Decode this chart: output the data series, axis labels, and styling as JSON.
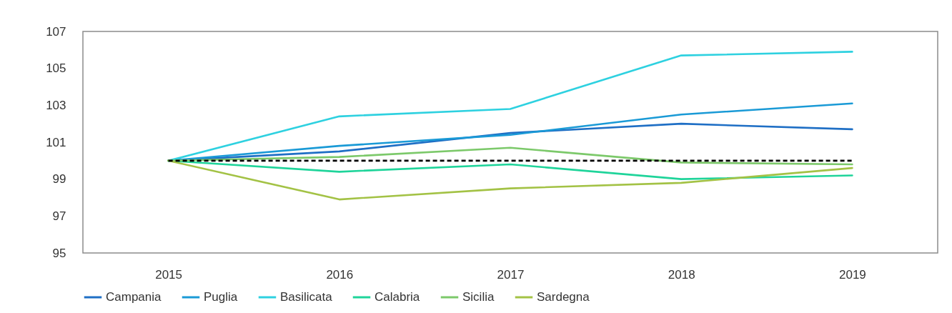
{
  "chart_data": {
    "type": "line",
    "categories": [
      "2015",
      "2016",
      "2017",
      "2018",
      "2019"
    ],
    "ylim": [
      95,
      107
    ],
    "yticks": [
      95,
      97,
      99,
      101,
      103,
      105,
      107
    ],
    "legend": "bottom",
    "series": [
      {
        "name": "Campania",
        "color": "#1f6fc5",
        "values": [
          100,
          100.5,
          101.5,
          102.0,
          101.7
        ]
      },
      {
        "name": "Puglia",
        "color": "#1a9ad6",
        "values": [
          100,
          100.8,
          101.4,
          102.5,
          103.1
        ]
      },
      {
        "name": "Basilicata",
        "color": "#2ed1e0",
        "values": [
          100,
          102.4,
          102.8,
          105.7,
          105.9
        ]
      },
      {
        "name": "Calabria",
        "color": "#1fd49a",
        "values": [
          100,
          99.4,
          99.8,
          99.0,
          99.2
        ]
      },
      {
        "name": "Sicilia",
        "color": "#7cc96a",
        "values": [
          100,
          100.2,
          100.7,
          99.9,
          99.8
        ]
      },
      {
        "name": "Sardegna",
        "color": "#a3c245",
        "values": [
          100,
          97.9,
          98.5,
          98.8,
          99.6
        ]
      }
    ],
    "ref_lines": [
      {
        "axis": "y",
        "value": 100,
        "color": "#000000",
        "line_style": "dashed"
      }
    ]
  }
}
